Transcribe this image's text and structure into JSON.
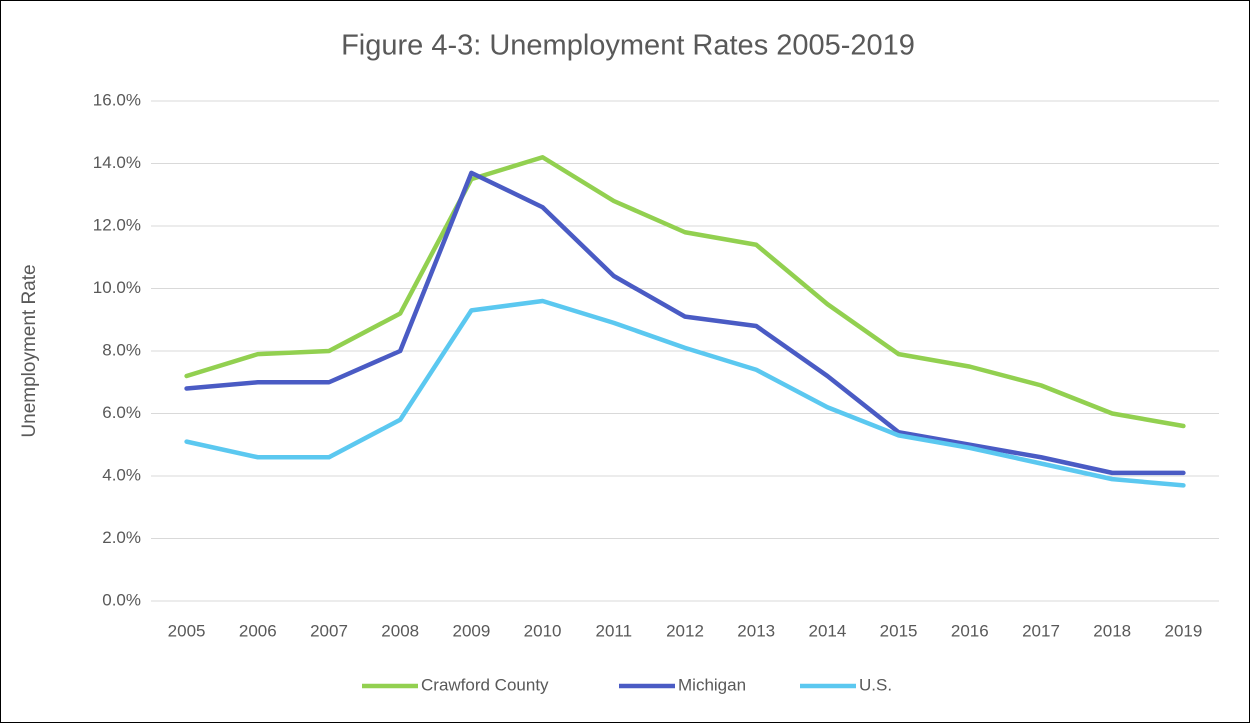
{
  "chart_data": {
    "type": "line",
    "title": "Figure 4-3: Unemployment Rates 2005-2019",
    "y_label": "Unemployment Rate",
    "categories": [
      "2005",
      "2006",
      "2007",
      "2008",
      "2009",
      "2010",
      "2011",
      "2012",
      "2013",
      "2014",
      "2015",
      "2016",
      "2017",
      "2018",
      "2019"
    ],
    "series": [
      {
        "name": "Crawford County",
        "color": "#92d050",
        "values": [
          7.2,
          7.9,
          8.0,
          9.2,
          13.5,
          14.2,
          12.8,
          11.8,
          11.4,
          9.5,
          7.9,
          7.5,
          6.9,
          6.0,
          5.6
        ]
      },
      {
        "name": "Michigan",
        "color": "#4a5bc4",
        "values": [
          6.8,
          7.0,
          7.0,
          8.0,
          13.7,
          12.6,
          10.4,
          9.1,
          8.8,
          7.2,
          5.4,
          5.0,
          4.6,
          4.1,
          4.1
        ]
      },
      {
        "name": "U.S.",
        "color": "#5bc8f0",
        "values": [
          5.1,
          4.6,
          4.6,
          5.8,
          9.3,
          9.6,
          8.9,
          8.1,
          7.4,
          6.2,
          5.3,
          4.9,
          4.4,
          3.9,
          3.7
        ]
      }
    ],
    "ylim": [
      0,
      16
    ],
    "yticks": [
      {
        "value": 0,
        "label": "0.0%"
      },
      {
        "value": 2,
        "label": "2.0%"
      },
      {
        "value": 4,
        "label": "4.0%"
      },
      {
        "value": 6,
        "label": "6.0%"
      },
      {
        "value": 8,
        "label": "8.0%"
      },
      {
        "value": 10,
        "label": "10.0%"
      },
      {
        "value": 12,
        "label": "12.0%"
      },
      {
        "value": 14,
        "label": "14.0%"
      },
      {
        "value": 16,
        "label": "16.0%"
      }
    ],
    "grid": true,
    "legend": "bottom"
  }
}
